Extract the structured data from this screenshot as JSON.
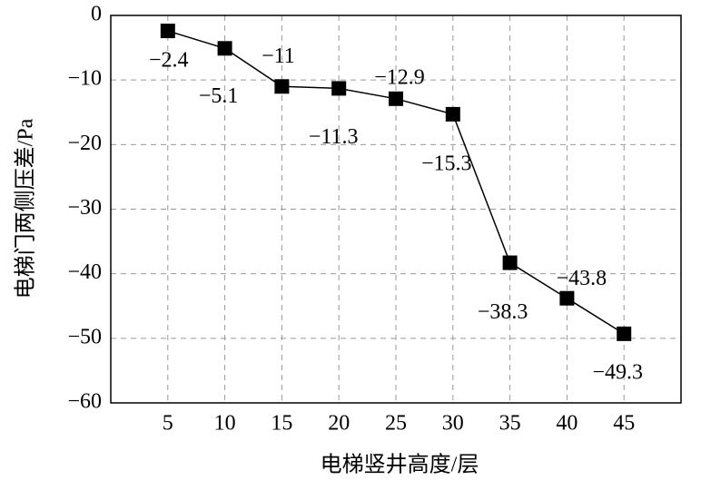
{
  "chart_data": {
    "type": "line",
    "x_label": "电梯竖井高度/层",
    "y_label": "电梯门两侧压差/Pa",
    "x": [
      5,
      10,
      15,
      20,
      25,
      30,
      35,
      40,
      45
    ],
    "series": [
      {
        "color": "#000000",
        "values": [
          -2.4,
          -5.1,
          -11,
          -11.3,
          -12.9,
          -15.3,
          -38.3,
          -43.8,
          -49.3
        ],
        "value_labels": [
          "−2.4",
          "−5.1",
          "−11",
          "−11.3",
          "−12.9",
          "−15.3",
          "−38.3",
          "−43.8",
          "−49.3"
        ]
      }
    ],
    "xlim": [
      0,
      50
    ],
    "ylim": [
      -60,
      0
    ],
    "xticks": [
      5,
      10,
      15,
      20,
      25,
      30,
      35,
      40,
      45
    ],
    "yticks": [
      {
        "value": -60,
        "label": "−60"
      },
      {
        "value": -50,
        "label": "−50"
      },
      {
        "value": -40,
        "label": "−40"
      },
      {
        "value": -30,
        "label": "−30"
      },
      {
        "value": -20,
        "label": "−20"
      },
      {
        "value": -10,
        "label": "−10"
      },
      0
    ],
    "grid": true
  }
}
